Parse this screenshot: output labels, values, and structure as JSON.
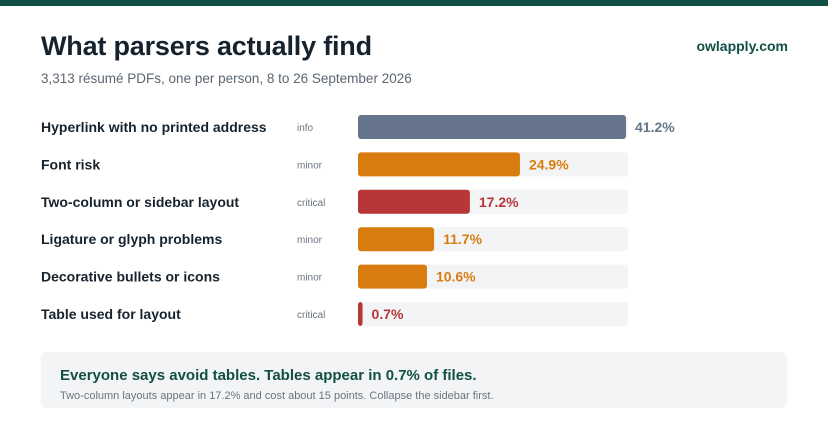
{
  "header": {
    "title": "What parsers actually find",
    "subtitle": "3,313 résumé PDFs, one per person, 8 to 26 September 2026",
    "brand": "owlapply.com"
  },
  "colors": {
    "info": "#66758c",
    "minor": "#d97c10",
    "critical": "#b63735",
    "track": "#f3f4f6",
    "brand": "#124f44"
  },
  "chart_data": {
    "type": "bar",
    "orientation": "horizontal",
    "unit": "%",
    "xlim": [
      0,
      50
    ],
    "grid": false,
    "legend": "none",
    "categories": [
      "Hyperlink with no printed address",
      "Font risk",
      "Two-column or sidebar layout",
      "Ligature or glyph problems",
      "Decorative bullets or icons",
      "Table used for layout"
    ],
    "severity": [
      "info",
      "minor",
      "critical",
      "minor",
      "minor",
      "critical"
    ],
    "values": [
      41.2,
      24.9,
      17.2,
      11.7,
      10.6,
      0.7
    ],
    "data_labels": [
      "41.2%",
      "24.9%",
      "17.2%",
      "11.7%",
      "10.6%",
      "0.7%"
    ]
  },
  "callout": {
    "headline": "Everyone says avoid tables. Tables appear in 0.7% of files.",
    "detail": "Two-column layouts appear in 17.2% and cost about 15 points. Collapse the sidebar first."
  }
}
